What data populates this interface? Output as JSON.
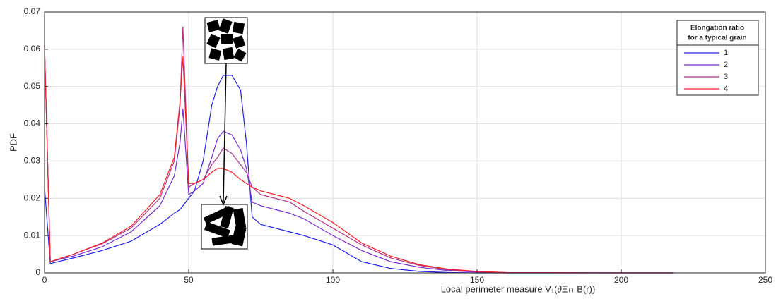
{
  "chart_data": {
    "type": "line",
    "xlabel": "Local perimeter measure V₁(∂Ξ∩ B(r))",
    "ylabel": "PDF",
    "legend_title": [
      "Elongation ratio",
      "for a typical grain"
    ],
    "legend_position": "upper right",
    "grid": true,
    "xlim": [
      0,
      250
    ],
    "xticks": [
      0,
      50,
      100,
      150,
      200,
      250
    ],
    "ylim": [
      0,
      0.07
    ],
    "yticks": [
      0,
      0.01,
      0.02,
      0.03,
      0.04,
      0.05,
      0.06,
      0.07
    ],
    "x": [
      0,
      2,
      10,
      20,
      30,
      40,
      45,
      47,
      48,
      50,
      52,
      55,
      58,
      60,
      62,
      65,
      68,
      70,
      72,
      75,
      80,
      85,
      90,
      100,
      110,
      120,
      130,
      140,
      150,
      160,
      200,
      218
    ],
    "series": [
      {
        "name": "1",
        "color": "#2020e8",
        "values": [
          0.023,
          0.0025,
          0.004,
          0.006,
          0.0085,
          0.013,
          0.016,
          0.017,
          0.018,
          0.02,
          0.022,
          0.03,
          0.045,
          0.05,
          0.053,
          0.053,
          0.049,
          0.035,
          0.015,
          0.013,
          0.012,
          0.011,
          0.01,
          0.0075,
          0.003,
          0.0012,
          0.0004,
          0.0001,
          0,
          0,
          0,
          0
        ]
      },
      {
        "name": "2",
        "color": "#7a2ad0",
        "values": [
          0.061,
          0.003,
          0.0045,
          0.007,
          0.011,
          0.018,
          0.026,
          0.035,
          0.044,
          0.021,
          0.022,
          0.024,
          0.031,
          0.036,
          0.038,
          0.037,
          0.033,
          0.028,
          0.019,
          0.018,
          0.017,
          0.016,
          0.0145,
          0.01,
          0.006,
          0.003,
          0.0015,
          0.0006,
          0.0002,
          0,
          0,
          0
        ]
      },
      {
        "name": "3",
        "color": "#b0308a",
        "values": [
          0.061,
          0.003,
          0.005,
          0.0078,
          0.012,
          0.02,
          0.03,
          0.045,
          0.066,
          0.023,
          0.024,
          0.025,
          0.029,
          0.031,
          0.0335,
          0.032,
          0.029,
          0.027,
          0.023,
          0.021,
          0.02,
          0.019,
          0.0165,
          0.012,
          0.0075,
          0.004,
          0.002,
          0.0008,
          0.0003,
          0.0001,
          0,
          0
        ]
      },
      {
        "name": "4",
        "color": "#f0202a",
        "values": [
          0.061,
          0.003,
          0.005,
          0.008,
          0.0125,
          0.021,
          0.031,
          0.046,
          0.058,
          0.024,
          0.024,
          0.025,
          0.027,
          0.028,
          0.028,
          0.027,
          0.025,
          0.024,
          0.023,
          0.022,
          0.021,
          0.02,
          0.018,
          0.0135,
          0.008,
          0.0045,
          0.0022,
          0.001,
          0.0004,
          0.0001,
          0,
          0
        ]
      }
    ]
  }
}
